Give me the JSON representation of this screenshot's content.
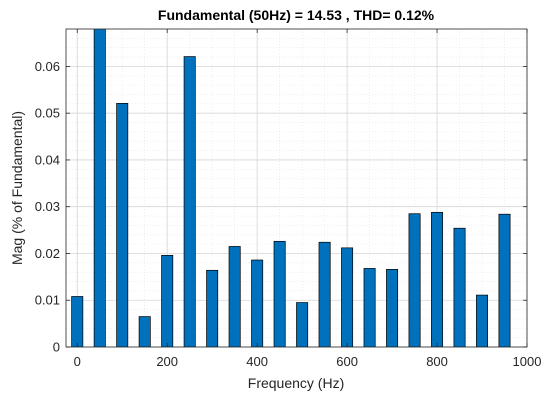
{
  "chart_data": {
    "type": "bar",
    "title": "Fundamental (50Hz) = 14.53 , THD= 0.12%",
    "xlabel": "Frequency (Hz)",
    "ylabel": "Mag (% of Fundamental)",
    "x": [
      0,
      50,
      100,
      150,
      200,
      250,
      300,
      350,
      400,
      450,
      500,
      550,
      600,
      650,
      700,
      750,
      800,
      850,
      900,
      950
    ],
    "values": [
      0.0108,
      0.07,
      0.0521,
      0.0065,
      0.0196,
      0.0621,
      0.0164,
      0.0215,
      0.0186,
      0.0226,
      0.0095,
      0.0224,
      0.0212,
      0.0168,
      0.0166,
      0.0285,
      0.0288,
      0.0254,
      0.0111,
      0.0284
    ],
    "xlim": [
      -25,
      1000
    ],
    "ylim": [
      0,
      0.068
    ],
    "xticks": [
      0,
      200,
      400,
      600,
      800,
      1000
    ],
    "xtick_labels": [
      "0",
      "200",
      "400",
      "600",
      "800",
      "1000"
    ],
    "yticks": [
      0,
      0.01,
      0.02,
      0.03,
      0.04,
      0.05,
      0.06
    ],
    "ytick_labels": [
      "0",
      "0.01",
      "0.02",
      "0.03",
      "0.04",
      "0.05",
      "0.06"
    ],
    "grid": true,
    "minor_grid": true,
    "bar_color": "#0072bd",
    "bar_edge_color": "#000000"
  }
}
